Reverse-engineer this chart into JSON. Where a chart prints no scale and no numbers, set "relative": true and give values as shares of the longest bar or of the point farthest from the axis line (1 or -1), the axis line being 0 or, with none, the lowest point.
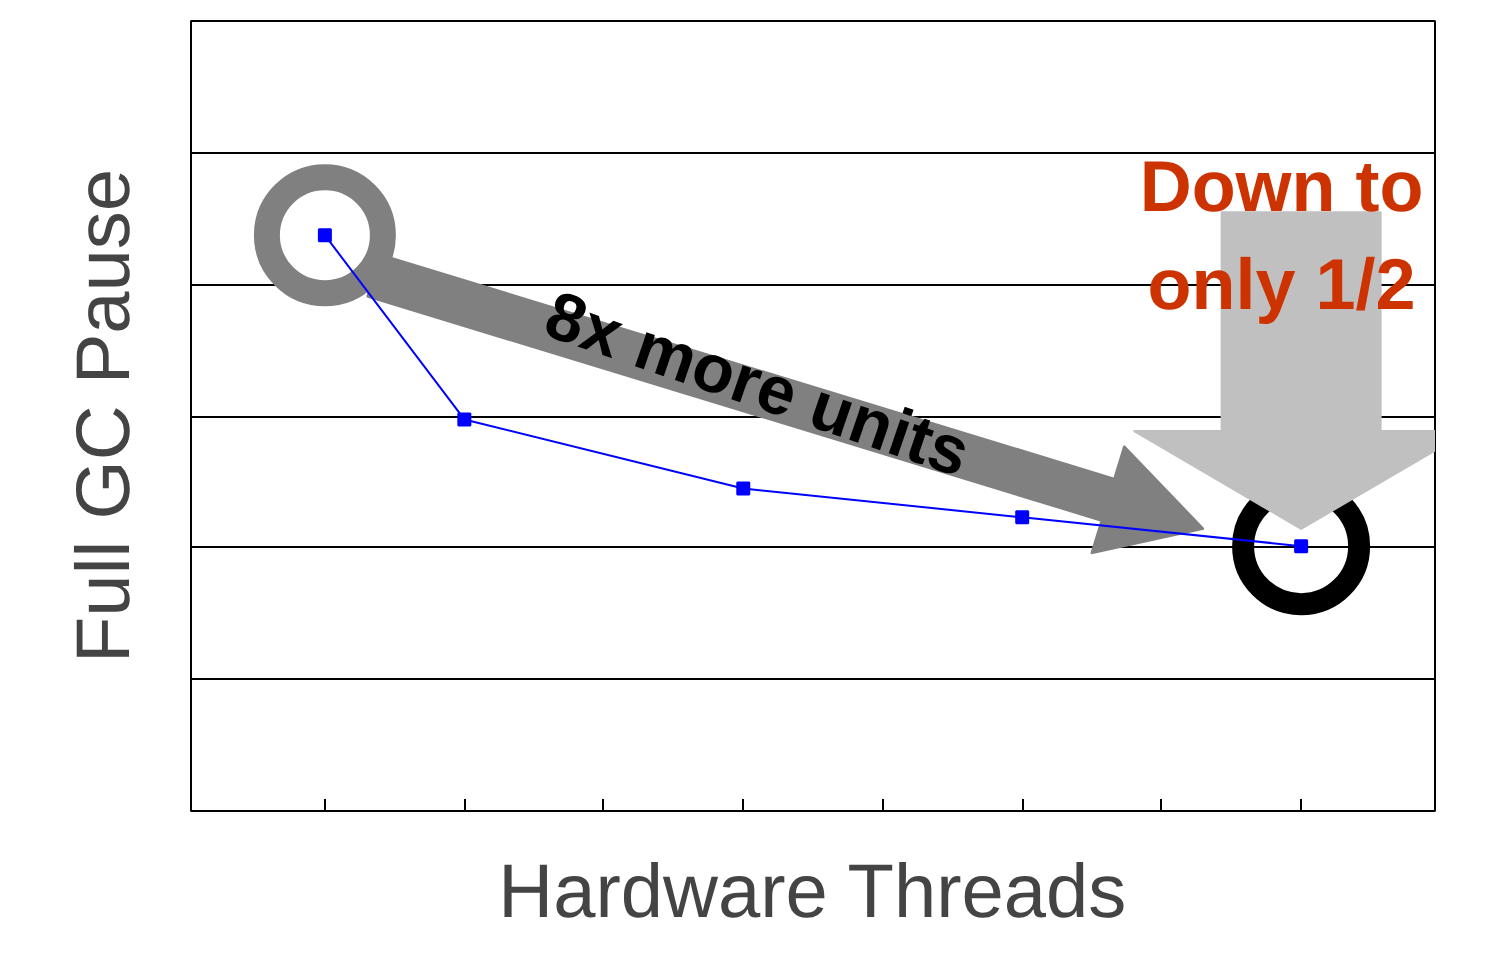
{
  "chart_data": {
    "type": "line",
    "relative": true,
    "xlabel": "Hardware Threads",
    "ylabel": "Full GC Pause",
    "categories": [
      null,
      null,
      null,
      null,
      null,
      null,
      null,
      null
    ],
    "series": [
      {
        "color": "#0000ff",
        "values": [
          1,
          0.68,
          null,
          0.56,
          null,
          0.51,
          null,
          0.46
        ]
      }
    ],
    "marker": "square",
    "line_style": "solid",
    "grid": "y",
    "annotations": [
      "8x more units",
      "Down to\nonly 1/2"
    ]
  }
}
